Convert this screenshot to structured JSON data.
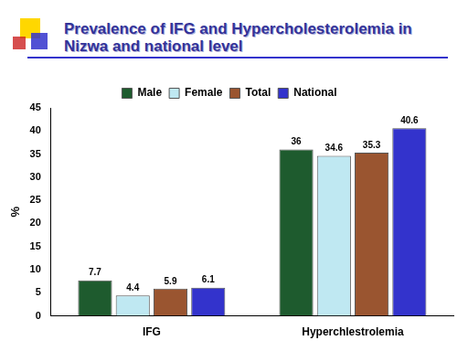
{
  "chart_data": {
    "type": "bar",
    "title": "Prevalence of IFG and Hypercholesterolemia in Nizwa and national level",
    "y_label": "%",
    "categories": [
      "IFG",
      "Hyperchlestrolemia"
    ],
    "series": [
      {
        "name": "Male",
        "color": "#1e5b2e",
        "values": [
          7.7,
          36
        ]
      },
      {
        "name": "Female",
        "color": "#bfe8f2",
        "values": [
          4.4,
          34.6
        ]
      },
      {
        "name": "Total",
        "color": "#9a5530",
        "values": [
          5.9,
          35.3
        ]
      },
      {
        "name": "National",
        "color": "#3333cc",
        "values": [
          6.1,
          40.6
        ]
      }
    ],
    "ylim": [
      0,
      45
    ],
    "yticks": [
      0,
      5,
      10,
      15,
      20,
      25,
      30,
      35,
      40,
      45
    ],
    "grid": false,
    "legend": "top",
    "data_labels": true
  }
}
